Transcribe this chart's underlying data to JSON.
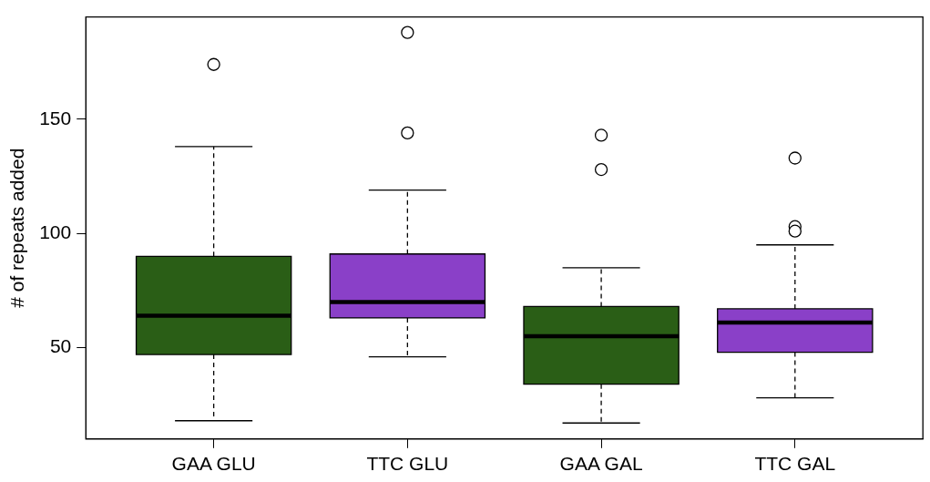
{
  "chart_data": {
    "type": "box",
    "ylabel": "# of repeats added",
    "categories": [
      "GAA GLU",
      "TTC GLU",
      "GAA GAL",
      "TTC GAL"
    ],
    "colors": [
      "#2a5e16",
      "#8a40c8",
      "#2a5e16",
      "#8a40c8"
    ],
    "boxes": [
      {
        "low": 18,
        "q1": 47,
        "median": 64,
        "q3": 90,
        "high": 138,
        "outliers": [
          174
        ]
      },
      {
        "low": 46,
        "q1": 63,
        "median": 70,
        "q3": 91,
        "high": 119,
        "outliers": [
          188,
          144
        ]
      },
      {
        "low": 17,
        "q1": 34,
        "median": 55,
        "q3": 68,
        "high": 85,
        "outliers": [
          143,
          128
        ]
      },
      {
        "low": 28,
        "q1": 48,
        "median": 61,
        "q3": 67,
        "high": 95,
        "outliers": [
          133,
          103,
          101
        ]
      }
    ],
    "ylim": [
      10,
      194.8
    ],
    "yticks": [
      50,
      100,
      150
    ]
  }
}
